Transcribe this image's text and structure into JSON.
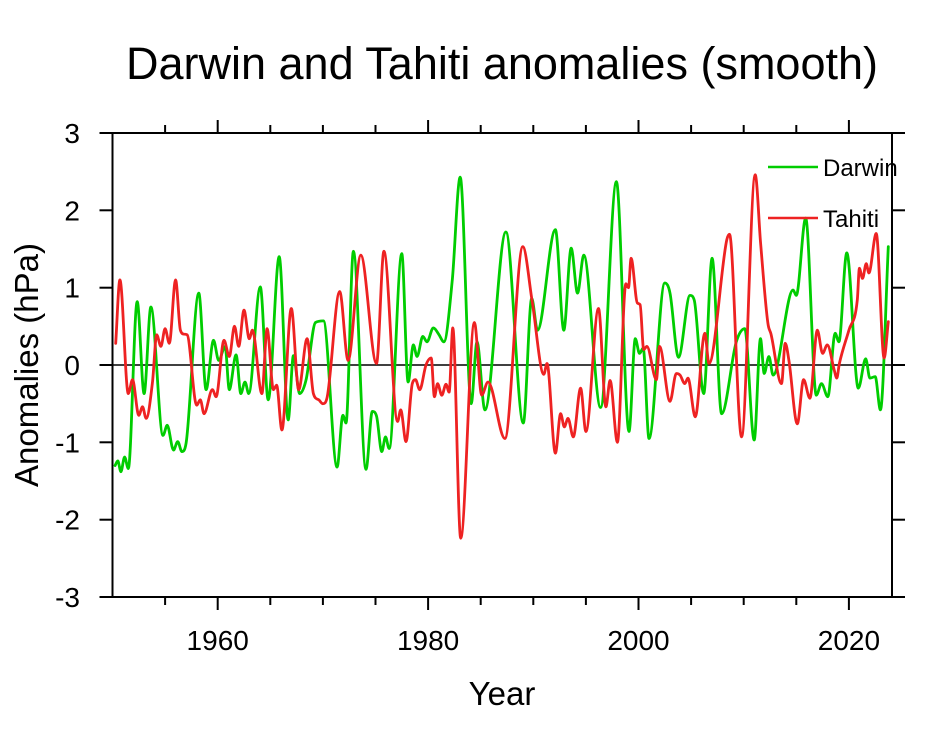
{
  "title": "Darwin and Tahiti anomalies (smooth)",
  "xlabel": "Year",
  "ylabel": "Anomalies (hPa)",
  "legend": [
    {
      "label": "Darwin",
      "color": "#00cd00"
    },
    {
      "label": "Tahiti",
      "color": "#ee2222"
    }
  ],
  "chart_data": {
    "type": "line",
    "title": "Darwin and Tahiti anomalies (smooth)",
    "xlabel": "Year",
    "ylabel": "Anomalies (hPa)",
    "legend_position": "top-right-inside",
    "grid": false,
    "zero_line": 0,
    "axes": {
      "xlim": [
        1950,
        2024.1
      ],
      "ylim": [
        -3,
        3
      ],
      "x_major_ticks": [
        1960,
        1980,
        2000,
        2020
      ],
      "x_minor_ticks": [
        1955,
        1965,
        1970,
        1975,
        1985,
        1990,
        1995,
        2005,
        2010,
        2015
      ],
      "y_ticks": [
        3,
        2,
        1,
        0,
        -1,
        -2,
        -3
      ]
    },
    "series": [
      {
        "name": "Darwin",
        "color": "#00cd00",
        "points": [
          [
            1950.25,
            -1.3
          ],
          [
            1950.5,
            -1.24
          ],
          [
            1950.8,
            -1.38
          ],
          [
            1951.15,
            -1.19
          ],
          [
            1951.5,
            -1.34
          ],
          [
            1952.35,
            0.82
          ],
          [
            1953.0,
            -0.37
          ],
          [
            1953.65,
            0.75
          ],
          [
            1954.8,
            -0.91
          ],
          [
            1955.2,
            -0.78
          ],
          [
            1955.8,
            -1.1
          ],
          [
            1956.2,
            -0.99
          ],
          [
            1956.6,
            -1.12
          ],
          [
            1957.0,
            -1.01
          ],
          [
            1958.2,
            0.93
          ],
          [
            1958.9,
            -0.32
          ],
          [
            1959.6,
            0.32
          ],
          [
            1960.1,
            0.06
          ],
          [
            1960.7,
            0.24
          ],
          [
            1961.1,
            -0.32
          ],
          [
            1961.75,
            0.13
          ],
          [
            1962.2,
            -0.37
          ],
          [
            1962.6,
            -0.22
          ],
          [
            1962.95,
            -0.37
          ],
          [
            1964.05,
            1.01
          ],
          [
            1964.8,
            -0.45
          ],
          [
            1965.85,
            1.4
          ],
          [
            1966.7,
            -0.71
          ],
          [
            1967.2,
            0.12
          ],
          [
            1967.8,
            -0.37
          ],
          [
            1968.4,
            -0.19
          ],
          [
            1969.3,
            0.55
          ],
          [
            1970.05,
            0.57
          ],
          [
            1971.35,
            -1.32
          ],
          [
            1971.9,
            -0.65
          ],
          [
            1972.2,
            -0.75
          ],
          [
            1972.9,
            1.47
          ],
          [
            1974.1,
            -1.35
          ],
          [
            1974.7,
            -0.6
          ],
          [
            1975.1,
            -0.66
          ],
          [
            1975.6,
            -1.12
          ],
          [
            1975.95,
            -0.93
          ],
          [
            1976.3,
            -1.08
          ],
          [
            1977.5,
            1.44
          ],
          [
            1978.1,
            -0.22
          ],
          [
            1978.6,
            0.26
          ],
          [
            1978.95,
            0.11
          ],
          [
            1979.5,
            0.37
          ],
          [
            1979.9,
            0.3
          ],
          [
            1980.5,
            0.48
          ],
          [
            1981.0,
            0.4
          ],
          [
            1981.5,
            0.3
          ],
          [
            1982.3,
            1.1
          ],
          [
            1983.05,
            2.43
          ],
          [
            1984.1,
            -0.5
          ],
          [
            1984.65,
            0.3
          ],
          [
            1985.4,
            -0.58
          ],
          [
            1987.4,
            1.72
          ],
          [
            1989.05,
            -0.75
          ],
          [
            1989.85,
            0.86
          ],
          [
            1990.4,
            0.45
          ],
          [
            1992.1,
            1.75
          ],
          [
            1992.9,
            0.45
          ],
          [
            1993.6,
            1.51
          ],
          [
            1994.2,
            0.93
          ],
          [
            1994.8,
            1.42
          ],
          [
            1996.4,
            -0.55
          ],
          [
            1997.9,
            2.37
          ],
          [
            1999.1,
            -0.86
          ],
          [
            1999.7,
            0.34
          ],
          [
            2000.1,
            0.15
          ],
          [
            2000.45,
            0.22
          ],
          [
            2001.0,
            -0.95
          ],
          [
            2002.5,
            1.06
          ],
          [
            2003.0,
            0.93
          ],
          [
            2003.8,
            0.1
          ],
          [
            2004.9,
            0.9
          ],
          [
            2005.3,
            0.84
          ],
          [
            2006.2,
            -0.37
          ],
          [
            2007.0,
            1.38
          ],
          [
            2007.9,
            -0.63
          ],
          [
            2009.3,
            0.3
          ],
          [
            2010.1,
            0.47
          ],
          [
            2011.0,
            -0.97
          ],
          [
            2011.6,
            0.34
          ],
          [
            2011.95,
            -0.11
          ],
          [
            2012.4,
            0.11
          ],
          [
            2012.8,
            -0.13
          ],
          [
            2014.7,
            0.97
          ],
          [
            2015.0,
            0.9
          ],
          [
            2015.9,
            1.9
          ],
          [
            2016.9,
            -0.39
          ],
          [
            2017.4,
            -0.24
          ],
          [
            2018.0,
            -0.41
          ],
          [
            2018.7,
            0.41
          ],
          [
            2019.05,
            0.3
          ],
          [
            2019.8,
            1.45
          ],
          [
            2020.9,
            -0.3
          ],
          [
            2021.6,
            0.08
          ],
          [
            2022.0,
            -0.17
          ],
          [
            2022.5,
            -0.15
          ],
          [
            2023.0,
            -0.58
          ],
          [
            2023.75,
            1.53
          ]
        ]
      },
      {
        "name": "Tahiti",
        "color": "#ee2222",
        "points": [
          [
            1950.3,
            0.28
          ],
          [
            1950.7,
            1.1
          ],
          [
            1951.5,
            -0.37
          ],
          [
            1951.9,
            -0.19
          ],
          [
            1952.5,
            -0.65
          ],
          [
            1952.85,
            -0.54
          ],
          [
            1953.2,
            -0.69
          ],
          [
            1953.8,
            -0.22
          ],
          [
            1954.2,
            0.39
          ],
          [
            1954.6,
            0.24
          ],
          [
            1955.0,
            0.47
          ],
          [
            1955.4,
            0.28
          ],
          [
            1956.0,
            1.1
          ],
          [
            1956.45,
            0.45
          ],
          [
            1956.8,
            0.4
          ],
          [
            1957.1,
            0.39
          ],
          [
            1958.0,
            -0.52
          ],
          [
            1958.35,
            -0.45
          ],
          [
            1958.7,
            -0.63
          ],
          [
            1959.5,
            -0.32
          ],
          [
            1959.85,
            -0.41
          ],
          [
            1960.6,
            0.32
          ],
          [
            1961.1,
            0.11
          ],
          [
            1961.6,
            0.5
          ],
          [
            1962.0,
            0.24
          ],
          [
            1962.5,
            0.71
          ],
          [
            1963.0,
            0.34
          ],
          [
            1963.3,
            0.45
          ],
          [
            1964.2,
            -0.37
          ],
          [
            1964.7,
            0.47
          ],
          [
            1965.3,
            -0.32
          ],
          [
            1965.6,
            -0.26
          ],
          [
            1966.1,
            -0.84
          ],
          [
            1967.0,
            0.73
          ],
          [
            1967.7,
            -0.32
          ],
          [
            1968.5,
            0.34
          ],
          [
            1969.1,
            -0.37
          ],
          [
            1969.6,
            -0.45
          ],
          [
            1970.0,
            -0.5
          ],
          [
            1970.4,
            -0.42
          ],
          [
            1971.6,
            0.95
          ],
          [
            1972.4,
            0.06
          ],
          [
            1973.6,
            1.42
          ],
          [
            1975.1,
            0.02
          ],
          [
            1975.8,
            1.47
          ],
          [
            1977.1,
            -0.73
          ],
          [
            1977.4,
            -0.58
          ],
          [
            1977.9,
            -0.99
          ],
          [
            1978.5,
            -0.24
          ],
          [
            1978.8,
            -0.19
          ],
          [
            1979.2,
            -0.32
          ],
          [
            1979.8,
            0.0
          ],
          [
            1980.3,
            0.09
          ],
          [
            1980.6,
            -0.41
          ],
          [
            1980.9,
            -0.24
          ],
          [
            1981.3,
            -0.39
          ],
          [
            1981.7,
            -0.25
          ],
          [
            1982.0,
            -0.35
          ],
          [
            1982.35,
            0.48
          ],
          [
            1983.1,
            -2.24
          ],
          [
            1984.4,
            0.55
          ],
          [
            1985.1,
            -0.39
          ],
          [
            1985.7,
            -0.22
          ],
          [
            1987.3,
            -0.95
          ],
          [
            1989.0,
            1.53
          ],
          [
            1989.9,
            0.82
          ],
          [
            1991.0,
            -0.12
          ],
          [
            1991.3,
            0.02
          ],
          [
            1992.1,
            -1.14
          ],
          [
            1992.6,
            -0.63
          ],
          [
            1992.95,
            -0.8
          ],
          [
            1993.3,
            -0.69
          ],
          [
            1993.8,
            -0.93
          ],
          [
            1994.5,
            -0.3
          ],
          [
            1995.0,
            -0.86
          ],
          [
            1996.2,
            0.73
          ],
          [
            1996.9,
            -0.54
          ],
          [
            1997.3,
            -0.2
          ],
          [
            1998.0,
            -1.0
          ],
          [
            1998.8,
            1.05
          ],
          [
            1999.05,
            1.0
          ],
          [
            1999.3,
            1.38
          ],
          [
            1999.9,
            0.8
          ],
          [
            2000.15,
            0.78
          ],
          [
            2000.5,
            0.2
          ],
          [
            2000.8,
            0.24
          ],
          [
            2001.7,
            -0.19
          ],
          [
            2002.0,
            0.24
          ],
          [
            2003.0,
            -0.47
          ],
          [
            2003.6,
            -0.11
          ],
          [
            2003.95,
            -0.13
          ],
          [
            2004.4,
            -0.24
          ],
          [
            2004.7,
            -0.17
          ],
          [
            2005.4,
            -0.67
          ],
          [
            2006.3,
            0.41
          ],
          [
            2006.7,
            0.02
          ],
          [
            2008.4,
            1.62
          ],
          [
            2008.65,
            1.69
          ],
          [
            2009.8,
            -0.93
          ],
          [
            2011.1,
            2.46
          ],
          [
            2011.6,
            1.59
          ],
          [
            2012.3,
            0.54
          ],
          [
            2012.6,
            0.4
          ],
          [
            2013.6,
            -0.24
          ],
          [
            2013.95,
            0.28
          ],
          [
            2014.3,
            0.06
          ],
          [
            2015.1,
            -0.76
          ],
          [
            2015.7,
            -0.19
          ],
          [
            2016.3,
            -0.43
          ],
          [
            2017.0,
            0.45
          ],
          [
            2017.5,
            0.15
          ],
          [
            2017.95,
            0.26
          ],
          [
            2018.6,
            -0.06
          ],
          [
            2018.85,
            -0.17
          ],
          [
            2019.1,
            0.02
          ],
          [
            2020.0,
            0.45
          ],
          [
            2020.8,
            0.84
          ],
          [
            2021.0,
            1.25
          ],
          [
            2021.3,
            1.12
          ],
          [
            2021.65,
            1.31
          ],
          [
            2021.9,
            1.19
          ],
          [
            2022.6,
            1.7
          ],
          [
            2023.35,
            0.09
          ],
          [
            2023.75,
            0.56
          ]
        ]
      }
    ]
  }
}
